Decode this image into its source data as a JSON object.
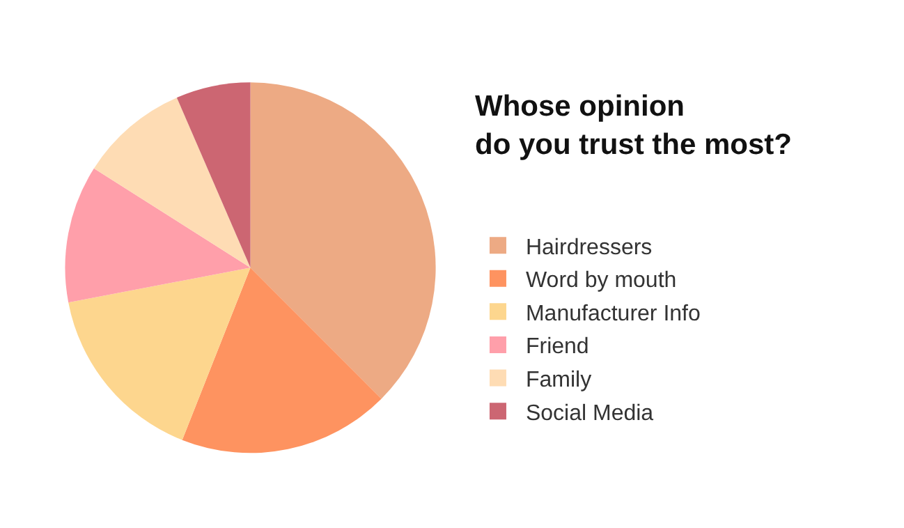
{
  "chart_data": {
    "type": "pie",
    "title": "Whose opinion\ndo you trust the most?",
    "categories": [
      "Hairdressers",
      "Word by mouth",
      "Manufacturer Info",
      "Friend",
      "Family",
      "Social Media"
    ],
    "values": [
      37.5,
      18.5,
      16,
      12,
      9.5,
      6.5
    ],
    "colors": [
      "#edaa84",
      "#fe9360",
      "#fdd68e",
      "#ff9faa",
      "#fedcb4",
      "#cc6672"
    ],
    "legend": "right"
  }
}
